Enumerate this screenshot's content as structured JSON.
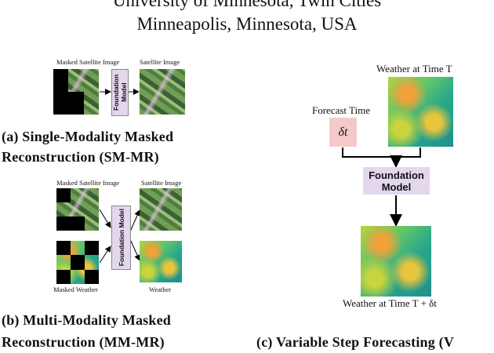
{
  "header": {
    "line1": "University of Minnesota, Twin Cities",
    "line2": "Minneapolis, Minnesota, USA"
  },
  "panel_a": {
    "input_label": "Masked Satellite Image",
    "model_label": "Foundation Model",
    "output_label": "Satellite Image",
    "caption_line1": "(a) Single-Modality Masked",
    "caption_line2": "Reconstruction (SM-MR)"
  },
  "panel_b": {
    "input1_label": "Masked Satellite Image",
    "input2_label": "Masked Weather",
    "model_label": "Foundation Model",
    "output1_label": "Satellite Image",
    "output2_label": "Weather",
    "caption_line1": "(b) Multi-Modality Masked",
    "caption_line2": "Reconstruction (MM-MR)"
  },
  "panel_c": {
    "input_label": "Weather at Time T",
    "forecast_label": "Forecast Time",
    "delta_label": "δt",
    "model_label": "Foundation Model",
    "output_label": "Weather at Time T + δt",
    "caption": "(c) Variable Step Forecasting (V"
  }
}
